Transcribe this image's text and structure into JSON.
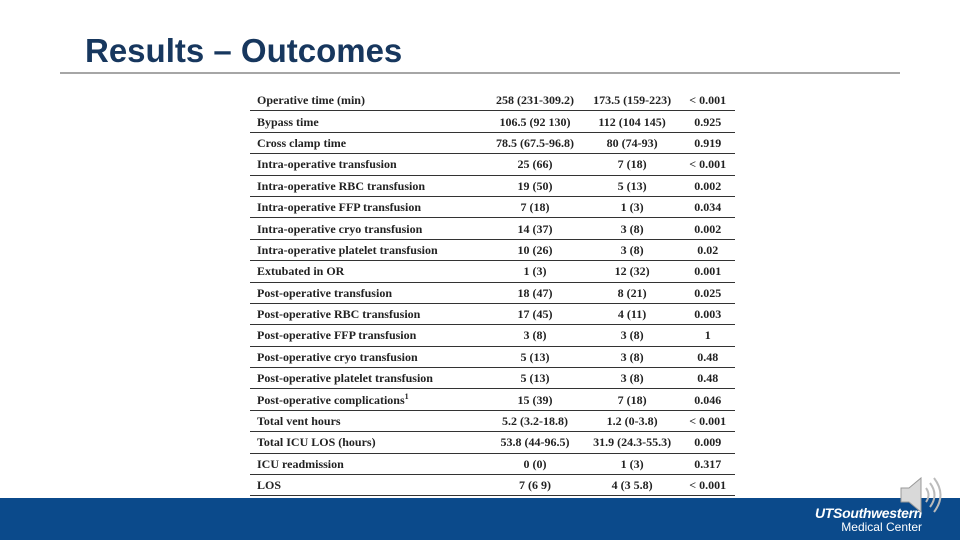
{
  "title": "Results – Outcomes",
  "table": {
    "rows": [
      [
        "Operative time (min)",
        "258 (231-309.2)",
        "173.5 (159-223)",
        "< 0.001"
      ],
      [
        "Bypass time",
        "106.5 (92 130)",
        "112 (104 145)",
        "0.925"
      ],
      [
        "Cross clamp time",
        "78.5 (67.5-96.8)",
        "80 (74-93)",
        "0.919"
      ],
      [
        "Intra-operative transfusion",
        "25 (66)",
        "7 (18)",
        "< 0.001"
      ],
      [
        "Intra-operative RBC transfusion",
        "19 (50)",
        "5 (13)",
        "0.002"
      ],
      [
        "Intra-operative FFP transfusion",
        "7 (18)",
        "1 (3)",
        "0.034"
      ],
      [
        "Intra-operative cryo transfusion",
        "14 (37)",
        "3 (8)",
        "0.002"
      ],
      [
        "Intra-operative platelet transfusion",
        "10 (26)",
        "3 (8)",
        "0.02"
      ],
      [
        "Extubated in OR",
        "1 (3)",
        "12 (32)",
        "0.001"
      ],
      [
        "Post-operative transfusion",
        "18 (47)",
        "8 (21)",
        "0.025"
      ],
      [
        "Post-operative RBC transfusion",
        "17 (45)",
        "4 (11)",
        "0.003"
      ],
      [
        "Post-operative FFP transfusion",
        "3 (8)",
        "3 (8)",
        "1"
      ],
      [
        "Post-operative cryo transfusion",
        "5 (13)",
        "3 (8)",
        "0.48"
      ],
      [
        "Post-operative platelet transfusion",
        "5 (13)",
        "3 (8)",
        "0.48"
      ],
      [
        "Post-operative complications",
        "15 (39)",
        "7 (18)",
        "0.046"
      ],
      [
        "Total vent hours",
        "5.2 (3.2-18.8)",
        "1.2 (0-3.8)",
        "< 0.001"
      ],
      [
        "Total ICU LOS (hours)",
        "53.8 (44-96.5)",
        "31.9 (24.3-55.3)",
        "0.009"
      ],
      [
        "ICU readmission",
        "0 (0)",
        "1 (3)",
        "0.317"
      ],
      [
        "LOS",
        "7 (6 9)",
        "4 (3 5.8)",
        "< 0.001"
      ]
    ],
    "footnote_mark": "1"
  },
  "logo": {
    "name": "UTSouthwestern",
    "sub": "Medical Center"
  }
}
